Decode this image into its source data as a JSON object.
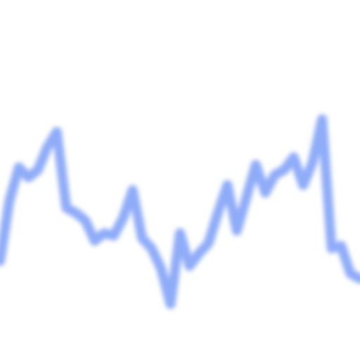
{
  "chart_data": {
    "type": "line",
    "title": "",
    "xlabel": "",
    "ylabel": "",
    "grid": false,
    "legend": "none",
    "x": [
      0,
      1,
      2,
      3,
      4,
      5,
      6,
      7,
      8,
      9,
      10,
      11,
      12,
      13,
      14,
      15,
      16,
      17,
      18,
      19,
      20,
      21,
      22,
      23,
      24,
      25,
      26,
      27,
      28,
      29,
      30,
      31,
      32,
      33,
      34,
      35,
      36,
      37,
      38
    ],
    "series": [
      {
        "color": "#8aa8f8",
        "values": [
          0.28,
          0.52,
          0.65,
          0.61,
          0.64,
          0.73,
          0.79,
          0.49,
          0.47,
          0.44,
          0.36,
          0.39,
          0.38,
          0.45,
          0.56,
          0.37,
          0.33,
          0.25,
          0.11,
          0.39,
          0.26,
          0.31,
          0.35,
          0.47,
          0.58,
          0.4,
          0.53,
          0.66,
          0.55,
          0.62,
          0.64,
          0.69,
          0.58,
          0.67,
          0.84,
          0.33,
          0.34,
          0.23,
          0.21
        ]
      }
    ],
    "xlim": [
      0,
      38
    ],
    "ylim": [
      0,
      1
    ]
  }
}
